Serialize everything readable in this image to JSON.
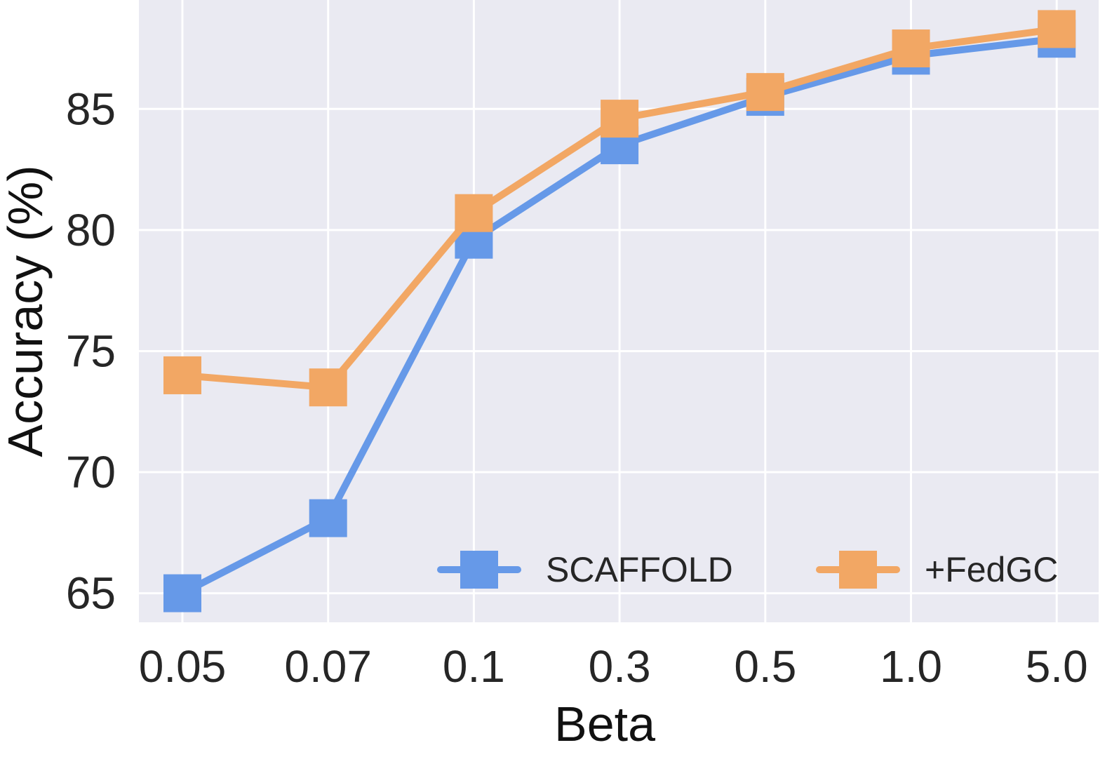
{
  "chart_data": {
    "type": "line",
    "title": "",
    "xlabel": "Beta",
    "ylabel": "Accuracy (%)",
    "categories": [
      "0.05",
      "0.07",
      "0.1",
      "0.3",
      "0.5",
      "1.0",
      "5.0"
    ],
    "yticks": [
      "65",
      "70",
      "75",
      "80",
      "85"
    ],
    "ylim": [
      63.8,
      89.5
    ],
    "grid": true,
    "legend_position": "lower-right",
    "background_color": "#eaeaf2",
    "series": [
      {
        "name": "SCAFFOLD",
        "color": "#6699e8",
        "values": [
          65.0,
          68.1,
          79.6,
          83.5,
          85.5,
          87.2,
          87.9
        ]
      },
      {
        "name": "+FedGC",
        "color": "#f2a764",
        "values": [
          74.0,
          73.5,
          80.7,
          84.6,
          85.7,
          87.5,
          88.3
        ]
      }
    ]
  }
}
